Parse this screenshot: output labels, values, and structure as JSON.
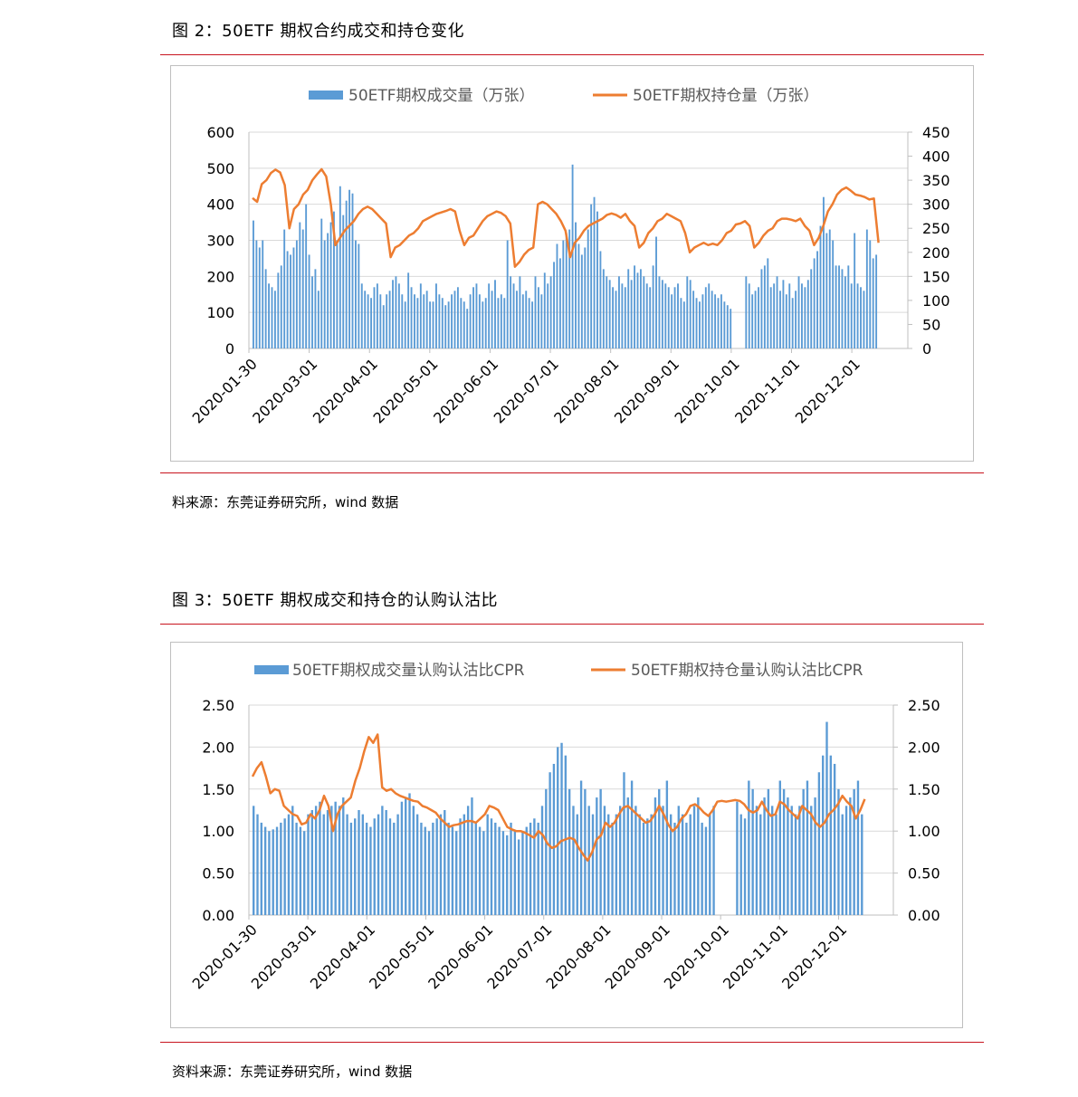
{
  "figures": [
    {
      "title": "图 2：50ETF 期权合约成交和持仓变化",
      "source": "料来源：东莞证券研究所，wind 数据",
      "chart_data": {
        "type": "bar+line",
        "legend": [
          "50ETF期权成交量（万张）",
          "50ETF期权持仓量（万张）"
        ],
        "y_left": {
          "range": [
            0,
            600
          ],
          "ticks": [
            "0",
            "100",
            "200",
            "300",
            "400",
            "500",
            "600"
          ]
        },
        "y_right": {
          "range": [
            0,
            450
          ],
          "ticks": [
            "0",
            "50",
            "100",
            "150",
            "200",
            "250",
            "300",
            "350",
            "400",
            "450"
          ]
        },
        "x_ticks": [
          "2020-01-30",
          "2020-03-01",
          "2020-04-01",
          "2020-05-01",
          "2020-06-01",
          "2020-07-01",
          "2020-08-01",
          "2020-09-01",
          "2020-10-01",
          "2020-11-01",
          "2020-12-01"
        ],
        "series": [
          {
            "name": "50ETF期权成交量（万张）",
            "kind": "bar",
            "axis": "left",
            "color": "#5b9bd5",
            "values": [
              355,
              300,
              280,
              300,
              220,
              180,
              170,
              160,
              210,
              230,
              330,
              270,
              260,
              280,
              300,
              350,
              330,
              400,
              260,
              200,
              220,
              160,
              360,
              300,
              320,
              350,
              380,
              300,
              450,
              370,
              410,
              440,
              430,
              300,
              290,
              180,
              160,
              150,
              140,
              170,
              180,
              150,
              120,
              150,
              160,
              190,
              200,
              180,
              150,
              130,
              210,
              170,
              150,
              140,
              180,
              150,
              160,
              130,
              130,
              180,
              150,
              140,
              120,
              130,
              150,
              160,
              170,
              140,
              130,
              110,
              150,
              170,
              180,
              150,
              130,
              140,
              180,
              160,
              190,
              140,
              150,
              140,
              300,
              200,
              180,
              160,
              200,
              150,
              160,
              140,
              130,
              200,
              170,
              150,
              210,
              180,
              200,
              240,
              290,
              250,
              300,
              320,
              330,
              510,
              350,
              290,
              260,
              280,
              330,
              400,
              420,
              380,
              270,
              220,
              200,
              190,
              170,
              160,
              200,
              180,
              170,
              220,
              190,
              230,
              210,
              220,
              200,
              180,
              170,
              230,
              310,
              200,
              190,
              180,
              170,
              150,
              170,
              180,
              140,
              130,
              200,
              190,
              160,
              140,
              130,
              150,
              170,
              180,
              160,
              150,
              140,
              150,
              130,
              120,
              110,
              0,
              0,
              0,
              0,
              200,
              180,
              150,
              160,
              170,
              220,
              230,
              250,
              170,
              180,
              200,
              160,
              190,
              150,
              180,
              140,
              160,
              200,
              180,
              170,
              190,
              220,
              250,
              270,
              340,
              420,
              320,
              330,
              300,
              230,
              230,
              220,
              200,
              230,
              180,
              320,
              180,
              170,
              160,
              330,
              300,
              250,
              260
            ]
          },
          {
            "name": "50ETF期权持仓量（万张）",
            "kind": "line",
            "axis": "right",
            "color": "#ed7d31",
            "values": [
              313,
              305,
              342,
              350,
              365,
              372,
              366,
              340,
              250,
              290,
              300,
              320,
              330,
              350,
              362,
              373,
              358,
              300,
              215,
              230,
              245,
              255,
              265,
              280,
              290,
              295,
              290,
              280,
              270,
              260,
              190,
              210,
              215,
              225,
              235,
              240,
              250,
              265,
              270,
              275,
              280,
              283,
              286,
              290,
              285,
              245,
              215,
              230,
              235,
              250,
              265,
              275,
              280,
              285,
              282,
              275,
              260,
              170,
              180,
              195,
              205,
              210,
              300,
              305,
              300,
              290,
              280,
              265,
              245,
              190,
              220,
              230,
              245,
              255,
              260,
              265,
              270,
              278,
              281,
              278,
              272,
              280,
              265,
              255,
              210,
              220,
              240,
              250,
              265,
              270,
              280,
              275,
              270,
              265,
              240,
              200,
              210,
              215,
              220,
              215,
              218,
              215,
              225,
              240,
              245,
              258,
              260,
              265,
              255,
              210,
              220,
              235,
              245,
              250,
              265,
              270,
              270,
              268,
              265,
              270,
              255,
              245,
              215,
              230,
              255,
              285,
              300,
              320,
              330,
              335,
              328,
              320,
              318,
              315,
              310,
              312,
              220
            ]
          }
        ]
      }
    },
    {
      "title": "图 3：50ETF 期权成交和持仓的认购认沽比",
      "source": "资料来源：东莞证券研究所，wind 数据",
      "chart_data": {
        "type": "bar+line",
        "legend": [
          "50ETF期权成交量认购认沽比CPR",
          "50ETF期权持仓量认购认沽比CPR"
        ],
        "y_left": {
          "range": [
            0,
            2.5
          ],
          "ticks": [
            "0.00",
            "0.50",
            "1.00",
            "1.50",
            "2.00",
            "2.50"
          ]
        },
        "y_right": {
          "range": [
            0,
            2.5
          ],
          "ticks": [
            "0.00",
            "0.50",
            "1.00",
            "1.50",
            "2.00",
            "2.50"
          ]
        },
        "x_ticks": [
          "2020-01-30",
          "2020-03-01",
          "2020-04-01",
          "2020-05-01",
          "2020-06-01",
          "2020-07-01",
          "2020-08-01",
          "2020-09-01",
          "2020-10-01",
          "2020-11-01",
          "2020-12-01"
        ],
        "series": [
          {
            "name": "50ETF期权成交量认购认沽比CPR",
            "kind": "bar",
            "axis": "left",
            "color": "#5b9bd5",
            "values": [
              1.3,
              1.2,
              1.1,
              1.05,
              1.0,
              1.02,
              1.05,
              1.1,
              1.15,
              1.2,
              1.3,
              1.1,
              1.05,
              1.0,
              1.2,
              1.25,
              1.3,
              1.35,
              1.2,
              1.25,
              1.3,
              1.35,
              1.3,
              1.4,
              1.2,
              1.1,
              1.15,
              1.25,
              1.2,
              1.1,
              1.05,
              1.15,
              1.2,
              1.3,
              1.25,
              1.15,
              1.1,
              1.2,
              1.35,
              1.4,
              1.45,
              1.3,
              1.2,
              1.1,
              1.05,
              1.0,
              1.1,
              1.15,
              1.2,
              1.25,
              1.1,
              1.05,
              1.0,
              1.15,
              1.2,
              1.3,
              1.4,
              1.1,
              1.05,
              1.0,
              1.2,
              1.15,
              1.1,
              1.05,
              1.0,
              0.95,
              1.1,
              1.0,
              0.9,
              1.0,
              1.05,
              1.1,
              1.15,
              1.1,
              1.3,
              1.5,
              1.7,
              1.8,
              2.0,
              2.05,
              1.9,
              1.5,
              1.3,
              1.2,
              1.6,
              1.5,
              1.3,
              1.2,
              1.4,
              1.5,
              1.3,
              1.2,
              1.1,
              1.2,
              1.3,
              1.7,
              1.4,
              1.6,
              1.3,
              1.2,
              1.1,
              1.15,
              1.2,
              1.4,
              1.5,
              1.3,
              1.6,
              1.2,
              1.1,
              1.3,
              1.2,
              1.1,
              1.2,
              1.3,
              1.4,
              1.1,
              1.05,
              1.2,
              1.3,
              0,
              0,
              0,
              0,
              0,
              1.35,
              1.2,
              1.15,
              1.6,
              1.5,
              1.3,
              1.2,
              1.4,
              1.5,
              1.3,
              1.2,
              1.6,
              1.5,
              1.4,
              1.3,
              1.2,
              1.3,
              1.5,
              1.6,
              1.3,
              1.4,
              1.7,
              1.9,
              2.3,
              1.9,
              1.8,
              1.5,
              1.2,
              1.3,
              1.4,
              1.5,
              1.6,
              1.2
            ]
          },
          {
            "name": "50ETF期权持仓量认购认沽比CPR",
            "kind": "line",
            "axis": "right",
            "color": "#ed7d31",
            "values": [
              1.65,
              1.75,
              1.82,
              1.65,
              1.45,
              1.5,
              1.48,
              1.3,
              1.25,
              1.2,
              1.18,
              1.08,
              1.1,
              1.2,
              1.15,
              1.25,
              1.42,
              1.3,
              1.0,
              1.2,
              1.3,
              1.35,
              1.4,
              1.6,
              1.75,
              1.95,
              2.12,
              2.05,
              2.15,
              1.52,
              1.48,
              1.5,
              1.45,
              1.42,
              1.4,
              1.38,
              1.36,
              1.35,
              1.3,
              1.28,
              1.25,
              1.22,
              1.15,
              1.1,
              1.05,
              1.07,
              1.08,
              1.1,
              1.12,
              1.12,
              1.1,
              1.15,
              1.2,
              1.3,
              1.28,
              1.25,
              1.15,
              1.05,
              1.02,
              1.0,
              1.0,
              0.98,
              0.95,
              0.92,
              1.0,
              0.95,
              0.85,
              0.8,
              0.82,
              0.88,
              0.9,
              0.92,
              0.9,
              0.8,
              0.72,
              0.65,
              0.75,
              0.9,
              0.95,
              1.1,
              1.05,
              1.1,
              1.2,
              1.28,
              1.3,
              1.25,
              1.2,
              1.15,
              1.1,
              1.12,
              1.2,
              1.3,
              1.2,
              1.08,
              1.0,
              1.05,
              1.15,
              1.2,
              1.3,
              1.32,
              1.28,
              1.22,
              1.18,
              1.25,
              1.35,
              1.36,
              1.35,
              1.36,
              1.37,
              1.36,
              1.32,
              1.25,
              1.22,
              1.25,
              1.35,
              1.25,
              1.18,
              1.2,
              1.35,
              1.32,
              1.25,
              1.2,
              1.15,
              1.3,
              1.25,
              1.2,
              1.1,
              1.05,
              1.1,
              1.2,
              1.25,
              1.32,
              1.42,
              1.35,
              1.3,
              1.15,
              1.25,
              1.38
            ]
          }
        ]
      }
    }
  ]
}
